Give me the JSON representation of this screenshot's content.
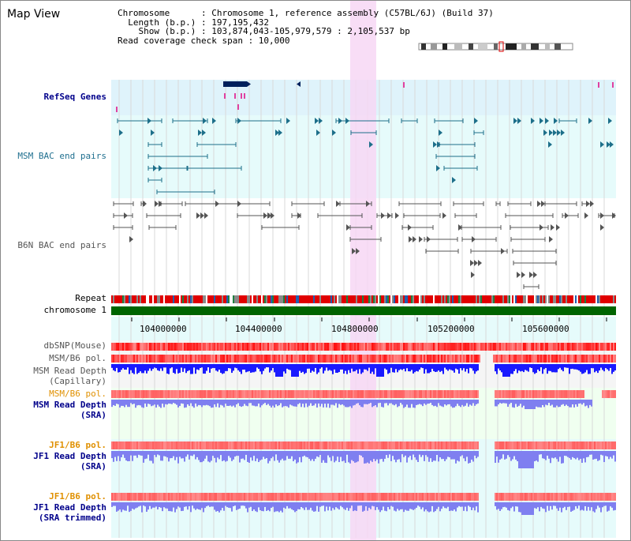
{
  "header": {
    "title": "Map View",
    "lines": [
      "Chromosome      : Chromosome 1, reference assembly (C57BL/6J) (Build 37)",
      "  Length (b.p.) : 197,195,432",
      "    Show (b.p.) : 103,874,043-105,979,579 : 2,105,537 bp",
      "Read coverage check span : 10,000"
    ]
  },
  "tracks": {
    "refseq": "RefSeq Genes",
    "msm_bac": "MSM BAC end pairs",
    "b6n_bac": "B6N BAC end pairs",
    "repeat": "Repeat",
    "chromosome": "chromosome 1",
    "dbsnp": "dbSNP(Mouse)",
    "msm_b6_pol_1": "MSM/B6 pol.",
    "msm_depth_cap_1": "MSM Read Depth",
    "msm_depth_cap_2": "(Capillary)",
    "msm_b6_pol_2": "MSM/B6 pol.",
    "msm_depth_sra_1": "MSM Read Depth",
    "msm_depth_sra_2": "(SRA)",
    "jf1_b6_pol_1": "JF1/B6 pol.",
    "jf1_depth_sra_1": "JF1 Read Depth",
    "jf1_depth_sra_2": "(SRA)",
    "jf1_b6_pol_2": "JF1/B6 pol.",
    "jf1_depth_trim_1": "JF1 Read Depth",
    "jf1_depth_trim_2": "(SRA trimmed)"
  },
  "axis": {
    "ticks": [
      "104000000",
      "104400000",
      "104800000",
      "105200000",
      "105600000"
    ]
  },
  "colors": {
    "highlight": "#f7d7f5",
    "refseq_bg": "#dff3fb",
    "bac_bg": "#e6fbfb",
    "chromosome_bar": "#006400",
    "gene": "#00205b",
    "msm_bac": "#1d6f8a",
    "b6n_bac": "#555555",
    "depth_capillary": "#1a1aff",
    "depth_sra": "#7f7ff0",
    "pol_msm": "#f05050"
  }
}
